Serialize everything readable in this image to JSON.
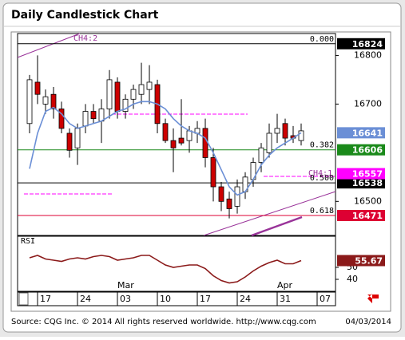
{
  "chart_data": {
    "type": "candlestick",
    "title": "Daily Candlestick Chart",
    "categories": [
      null,
      null,
      "17",
      null,
      null,
      null,
      null,
      "24",
      null,
      null,
      null,
      null,
      "03",
      null,
      null,
      null,
      null,
      "10",
      null,
      null,
      null,
      null,
      "17",
      null,
      null,
      null,
      null,
      "24",
      null,
      null,
      null,
      null,
      "31",
      null,
      null,
      null,
      null,
      "07"
    ],
    "months": [
      null,
      null,
      null,
      null,
      null,
      null,
      null,
      null,
      null,
      null,
      null,
      null,
      "Mar",
      null,
      null,
      null,
      null,
      null,
      null,
      null,
      null,
      null,
      null,
      null,
      null,
      null,
      null,
      null,
      null,
      null,
      null,
      null,
      "Apr",
      null,
      null,
      null,
      null,
      null
    ],
    "open": [
      16660,
      16745,
      16700,
      16720,
      16690,
      16640,
      16610,
      16655,
      16685,
      16665,
      16690,
      16745,
      16685,
      16710,
      16720,
      16730,
      16740,
      16660,
      16625,
      16630,
      16625,
      16640,
      16650,
      16590,
      16530,
      16505,
      16490,
      16520,
      16545,
      16580,
      16600,
      16640,
      16660,
      16635,
      16625,
      null,
      null,
      null
    ],
    "high": [
      16760,
      16800,
      16730,
      16735,
      16705,
      16650,
      16660,
      16700,
      16700,
      16710,
      16770,
      16755,
      16720,
      16740,
      16785,
      16780,
      16750,
      16670,
      16650,
      16710,
      16655,
      16665,
      16670,
      16610,
      16540,
      16520,
      16545,
      16560,
      16590,
      16620,
      16660,
      16680,
      16670,
      16655,
      16660,
      null,
      null,
      null
    ],
    "low": [
      16640,
      16700,
      16680,
      16670,
      16640,
      16590,
      16575,
      16640,
      16660,
      16620,
      16670,
      16670,
      16670,
      16690,
      16700,
      16700,
      16640,
      16620,
      16560,
      16615,
      16600,
      16620,
      16570,
      16500,
      16480,
      16465,
      16475,
      16505,
      16530,
      16560,
      16590,
      16620,
      16615,
      16620,
      16615,
      null,
      null,
      null
    ],
    "close": [
      16750,
      16720,
      16715,
      16690,
      16650,
      16605,
      16650,
      16685,
      16670,
      16690,
      16750,
      16685,
      16710,
      16730,
      16740,
      16745,
      16660,
      16625,
      16610,
      16620,
      16645,
      16650,
      16590,
      16530,
      16500,
      16485,
      16530,
      16550,
      16580,
      16610,
      16640,
      16650,
      16630,
      16630,
      16645,
      null,
      null,
      null
    ],
    "up_color": "#ffffff",
    "down_color": "#cc0000",
    "ma": {
      "color": "#6b8fd6",
      "values": [
        16567,
        16640,
        16685,
        16693,
        16680,
        16660,
        16650,
        16655,
        16660,
        16665,
        16675,
        16685,
        16690,
        16700,
        16705,
        16705,
        16700,
        16690,
        16670,
        16655,
        16645,
        16640,
        16630,
        16600,
        16565,
        16530,
        16513,
        16520,
        16545,
        16575,
        16595,
        16610,
        16620,
        16630,
        16641,
        null,
        null,
        null
      ]
    },
    "ylim": [
      16430,
      16845
    ],
    "yticks": [
      16500,
      16700,
      16800
    ],
    "levels": [
      {
        "value": 16824,
        "label": "0.000",
        "color": "#000000"
      },
      {
        "value": 16606,
        "label": "0.382",
        "color": "#1a8a1a"
      },
      {
        "value": 16538,
        "label": "0.500",
        "color": "#000000"
      },
      {
        "value": 16471,
        "label": "0.618",
        "color": "#dd0033"
      }
    ],
    "price_boxes": [
      {
        "value": 16641,
        "color": "#6b8fd6"
      },
      {
        "value": 16557,
        "color": "#ff00ff"
      }
    ],
    "annotations": [
      "CH4:2",
      "CH4:1"
    ],
    "rsi": {
      "label": "RSI",
      "color": "#8b1a1a",
      "ylim": [
        30,
        76
      ],
      "yticks": [
        40,
        50
      ],
      "values": [
        58,
        60,
        57,
        56,
        55,
        57,
        58,
        57,
        59,
        60,
        59,
        56,
        57,
        58,
        60,
        60,
        56,
        52,
        50,
        51,
        52,
        52,
        49,
        43,
        39,
        37,
        38,
        42,
        47,
        51,
        54,
        56,
        53,
        53,
        55.67,
        null,
        null,
        null
      ]
    },
    "source": "Source: CQG Inc. © 2014 All rights reserved worldwide.  http://www.cqg.com",
    "date": "04/03/2014"
  }
}
